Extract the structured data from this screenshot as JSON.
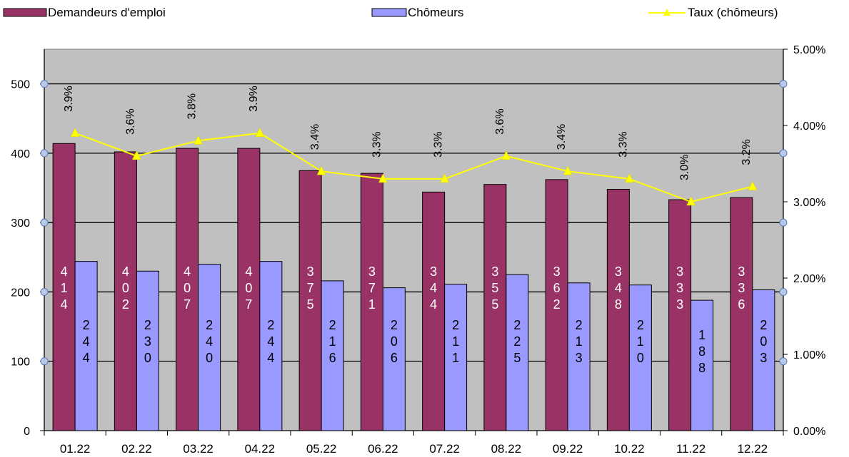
{
  "chart_data": {
    "type": "bar",
    "categories": [
      "01.22",
      "02.22",
      "03.22",
      "04.22",
      "05.22",
      "06.22",
      "07.22",
      "08.22",
      "09.22",
      "10.22",
      "11.22",
      "12.22"
    ],
    "series": [
      {
        "name": "Demandeurs d'emploi",
        "kind": "bar",
        "axis": "left",
        "color": "#993366",
        "values": [
          414,
          402,
          407,
          407,
          375,
          371,
          344,
          355,
          362,
          348,
          333,
          336
        ]
      },
      {
        "name": "Chômeurs",
        "kind": "bar",
        "axis": "left",
        "color": "#9999FF",
        "values": [
          244,
          230,
          240,
          244,
          216,
          206,
          211,
          225,
          213,
          210,
          188,
          203
        ]
      },
      {
        "name": "Taux (chômeurs)",
        "kind": "line",
        "axis": "right",
        "color": "#FFFF00",
        "values": [
          3.9,
          3.6,
          3.8,
          3.9,
          3.4,
          3.3,
          3.3,
          3.6,
          3.4,
          3.3,
          3.0,
          3.2
        ],
        "labels": [
          "3.9%",
          "3.6%",
          "3.8%",
          "3.9%",
          "3.4%",
          "3.3%",
          "3.3%",
          "3.6%",
          "3.4%",
          "3.3%",
          "3.0%",
          "3.2%"
        ]
      }
    ],
    "y_left": {
      "ticks": [
        "0",
        "100",
        "200",
        "300",
        "400",
        "500"
      ],
      "ylim": [
        0,
        500
      ]
    },
    "y_right": {
      "ticks": [
        "0.00%",
        "1.00%",
        "2.00%",
        "3.00%",
        "4.00%",
        "5.00%"
      ],
      "ylim": [
        0,
        5
      ]
    },
    "grid": true,
    "legend": "top",
    "plot_background": "#C0C0C0"
  }
}
